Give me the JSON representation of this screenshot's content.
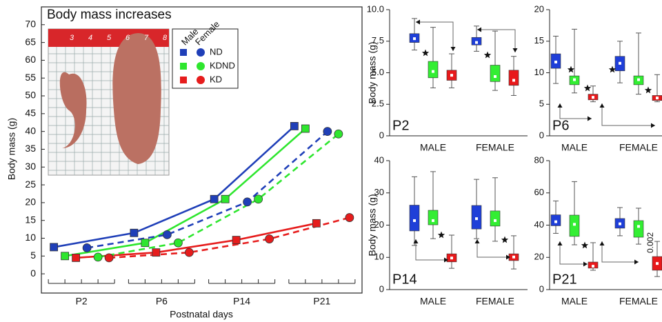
{
  "chart_data": [
    {
      "type": "line",
      "title": "Body mass increases",
      "xlabel": "Postnatal days",
      "ylabel": "Body mass (g)",
      "categories": [
        "P2",
        "P6",
        "P14",
        "P21"
      ],
      "ylim": [
        -5.4,
        75
      ],
      "yticks": [
        0,
        5,
        10,
        15,
        20,
        25,
        30,
        35,
        40,
        45,
        50,
        55,
        60,
        65,
        70
      ],
      "ruler_labels": [
        3,
        4,
        5,
        6,
        7,
        8
      ],
      "series": [
        {
          "name": "ND",
          "sex": "Male",
          "color": "#1f3fb8",
          "marker": "square",
          "dashed": false,
          "values": [
            7.5,
            11.5,
            21,
            41.5
          ]
        },
        {
          "name": "KDND",
          "sex": "Male",
          "color": "#2ee62e",
          "marker": "square",
          "dashed": false,
          "values": [
            5,
            8.7,
            21,
            40.8
          ]
        },
        {
          "name": "KD",
          "sex": "Male",
          "color": "#e61c1c",
          "marker": "square",
          "dashed": false,
          "values": [
            4.5,
            6,
            9.5,
            14.2
          ]
        },
        {
          "name": "ND",
          "sex": "Female",
          "color": "#1f3fb8",
          "marker": "circle",
          "dashed": true,
          "values": [
            7.3,
            11,
            20.2,
            40
          ]
        },
        {
          "name": "KDND",
          "sex": "Female",
          "color": "#2ee62e",
          "marker": "circle",
          "dashed": true,
          "values": [
            4.7,
            8.7,
            21,
            39.3
          ]
        },
        {
          "name": "KD",
          "sex": "Female",
          "color": "#e61c1c",
          "marker": "circle",
          "dashed": true,
          "values": [
            4.5,
            6,
            9.8,
            15.8
          ]
        }
      ]
    },
    {
      "type": "box",
      "panel_label": "P2",
      "ylabel": "Body mass (g)",
      "categories": [
        "MALE",
        "FEMALE"
      ],
      "ylim": [
        0,
        10
      ],
      "yticks": [
        0,
        2.5,
        {
          "value": 5,
          "label": "5.0"
        },
        7.5,
        {
          "value": 10,
          "label": "10.0"
        }
      ],
      "series": [
        {
          "color": "#1f3fd8",
          "values": [
            {
              "low": 6.8,
              "q1": 7.4,
              "q3": 8.1,
              "high": 9.3,
              "mean": 7.7
            },
            {
              "low": 6.7,
              "q1": 7.2,
              "q3": 7.8,
              "high": 8.7,
              "mean": 7.4
            }
          ]
        },
        {
          "color": "#33ee33",
          "values": [
            {
              "low": 3.8,
              "q1": 4.6,
              "q3": 5.9,
              "high": 8.6,
              "mean": 5.1
            },
            {
              "low": 3.6,
              "q1": 4.3,
              "q3": 5.6,
              "high": 8.3,
              "mean": 4.7
            }
          ]
        },
        {
          "color": "#e8191b",
          "values": [
            {
              "low": 3.8,
              "q1": 4.4,
              "q3": 5.2,
              "high": 6.5,
              "mean": 4.8
            },
            {
              "low": 3.2,
              "q1": 4.0,
              "q3": 5.2,
              "high": 6.3,
              "mean": 4.4
            }
          ]
        }
      ]
    },
    {
      "type": "box",
      "panel_label": "P6",
      "categories": [
        "MALE",
        "FEMALE"
      ],
      "ylim": [
        0,
        20
      ],
      "yticks": [
        0,
        5,
        10,
        15,
        20
      ],
      "series": [
        {
          "color": "#1f3fd8",
          "values": [
            {
              "low": 8.3,
              "q1": 10.7,
              "q3": 13.0,
              "high": 15.8,
              "mean": 11.7
            },
            {
              "low": 8.4,
              "q1": 10.3,
              "q3": 12.6,
              "high": 15.0,
              "mean": 11.5
            }
          ]
        },
        {
          "color": "#33ee33",
          "values": [
            {
              "low": 6.8,
              "q1": 8.1,
              "q3": 9.5,
              "high": 16.9,
              "mean": 8.9
            },
            {
              "low": 6.6,
              "q1": 8.1,
              "q3": 9.5,
              "high": 16.3,
              "mean": 8.9
            }
          ]
        },
        {
          "color": "#e8191b",
          "values": [
            {
              "low": 5.4,
              "q1": 5.7,
              "q3": 6.6,
              "high": 7.9,
              "mean": 6.1
            },
            {
              "low": 5.4,
              "q1": 5.6,
              "q3": 6.4,
              "high": 9.7,
              "mean": 6.0
            }
          ]
        }
      ]
    },
    {
      "type": "box",
      "panel_label": "P14",
      "ylabel": "Body mass (g)",
      "categories": [
        "MALE",
        "FEMALE"
      ],
      "ylim": [
        0,
        40
      ],
      "yticks": [
        0,
        10,
        20,
        30,
        40
      ],
      "series": [
        {
          "color": "#1f3fd8",
          "values": [
            {
              "low": 13.7,
              "q1": 18.2,
              "q3": 26.2,
              "high": 35,
              "mean": 21.4
            },
            {
              "low": 15.8,
              "q1": 18.8,
              "q3": 26.1,
              "high": 34.2,
              "mean": 22
            }
          ]
        },
        {
          "color": "#33ee33",
          "values": [
            {
              "low": 15.8,
              "q1": 20.1,
              "q3": 24.6,
              "high": 36.6,
              "mean": 21.4
            },
            {
              "low": 15,
              "q1": 19.7,
              "q3": 24.4,
              "high": 34.7,
              "mean": 21.4
            }
          ]
        },
        {
          "color": "#e8191b",
          "values": [
            {
              "low": 6.6,
              "q1": 8.6,
              "q3": 11.1,
              "high": 16.9,
              "mean": 9.8
            },
            {
              "low": 6.4,
              "q1": 9,
              "q3": 11.1,
              "high": 16.7,
              "mean": 10.1
            }
          ]
        }
      ]
    },
    {
      "type": "box",
      "panel_label": "P21",
      "annotation": "0.002",
      "categories": [
        "MALE",
        "FEMALE"
      ],
      "ylim": [
        0,
        80
      ],
      "yticks": [
        0,
        20,
        40,
        60,
        80
      ],
      "series": [
        {
          "color": "#1f3fd8",
          "values": [
            {
              "low": 34.9,
              "q1": 39.6,
              "q3": 46.4,
              "high": 55,
              "mean": 42.1
            },
            {
              "low": 33.4,
              "q1": 38.1,
              "q3": 44.1,
              "high": 50.9,
              "mean": 40.8
            }
          ]
        },
        {
          "color": "#33ee33",
          "values": [
            {
              "low": 27.8,
              "q1": 33,
              "q3": 46.2,
              "high": 67,
              "mean": 40.5
            },
            {
              "low": 28.2,
              "q1": 32.5,
              "q3": 42.8,
              "high": 50.5,
              "mean": 39.2
            }
          ]
        },
        {
          "color": "#e8191b",
          "values": [
            {
              "low": 12,
              "q1": 13.3,
              "q3": 17.1,
              "high": 29.1,
              "mean": 14.5
            },
            {
              "low": 8.1,
              "q1": 12,
              "q3": 20.5,
              "high": 29.9,
              "mean": 16.2
            }
          ]
        }
      ]
    }
  ]
}
